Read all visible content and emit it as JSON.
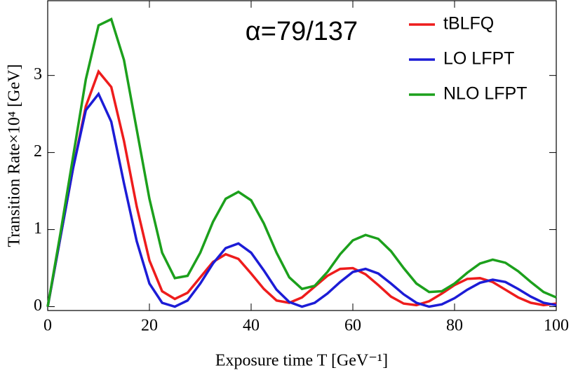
{
  "chart_data": {
    "type": "line",
    "annotation": "α=79/137",
    "xlabel": "Exposure time T [GeV⁻¹]",
    "ylabel": "Transition Rate×10⁴ [GeV]",
    "x": [
      0,
      2.5,
      5,
      7.5,
      10,
      12.5,
      15,
      17.5,
      20,
      22.5,
      25,
      27.5,
      30,
      32.5,
      35,
      37.5,
      40,
      42.5,
      45,
      47.5,
      50,
      52.5,
      55,
      57.5,
      60,
      62.5,
      65,
      67.5,
      70,
      72.5,
      75,
      77.5,
      80,
      82.5,
      85,
      87.5,
      90,
      92.5,
      95,
      97.5,
      100
    ],
    "series": [
      {
        "name": "tBLFQ",
        "color": "#ee1c1c",
        "values": [
          0,
          0.9,
          1.8,
          2.6,
          3.05,
          2.85,
          2.15,
          1.3,
          0.6,
          0.2,
          0.1,
          0.18,
          0.38,
          0.58,
          0.68,
          0.62,
          0.43,
          0.23,
          0.08,
          0.05,
          0.12,
          0.26,
          0.4,
          0.49,
          0.5,
          0.42,
          0.28,
          0.13,
          0.04,
          0.02,
          0.07,
          0.17,
          0.28,
          0.36,
          0.37,
          0.32,
          0.22,
          0.12,
          0.05,
          0.02,
          0.04
        ]
      },
      {
        "name": "LO LFPT",
        "color": "#1c1cd6",
        "values": [
          0,
          0.9,
          1.8,
          2.55,
          2.76,
          2.4,
          1.6,
          0.85,
          0.3,
          0.05,
          0,
          0.08,
          0.3,
          0.56,
          0.76,
          0.82,
          0.7,
          0.47,
          0.22,
          0.06,
          0,
          0.05,
          0.17,
          0.32,
          0.45,
          0.49,
          0.43,
          0.3,
          0.16,
          0.05,
          0,
          0.03,
          0.11,
          0.22,
          0.31,
          0.35,
          0.32,
          0.23,
          0.13,
          0.05,
          0.02
        ]
      },
      {
        "name": "NLO LFPT",
        "color": "#1ca01c",
        "values": [
          0,
          0.95,
          1.95,
          2.95,
          3.65,
          3.73,
          3.2,
          2.3,
          1.4,
          0.7,
          0.37,
          0.4,
          0.7,
          1.1,
          1.4,
          1.49,
          1.38,
          1.08,
          0.7,
          0.38,
          0.23,
          0.27,
          0.45,
          0.68,
          0.86,
          0.93,
          0.88,
          0.72,
          0.5,
          0.3,
          0.19,
          0.2,
          0.3,
          0.44,
          0.56,
          0.61,
          0.57,
          0.46,
          0.32,
          0.19,
          0.12
        ]
      }
    ],
    "xlim": [
      0,
      100
    ],
    "ylim": [
      -0.05,
      3.97
    ],
    "xticks": [
      0,
      20,
      40,
      60,
      80,
      100
    ],
    "yticks": [
      0,
      1,
      2,
      3
    ],
    "legend": "upper right"
  }
}
